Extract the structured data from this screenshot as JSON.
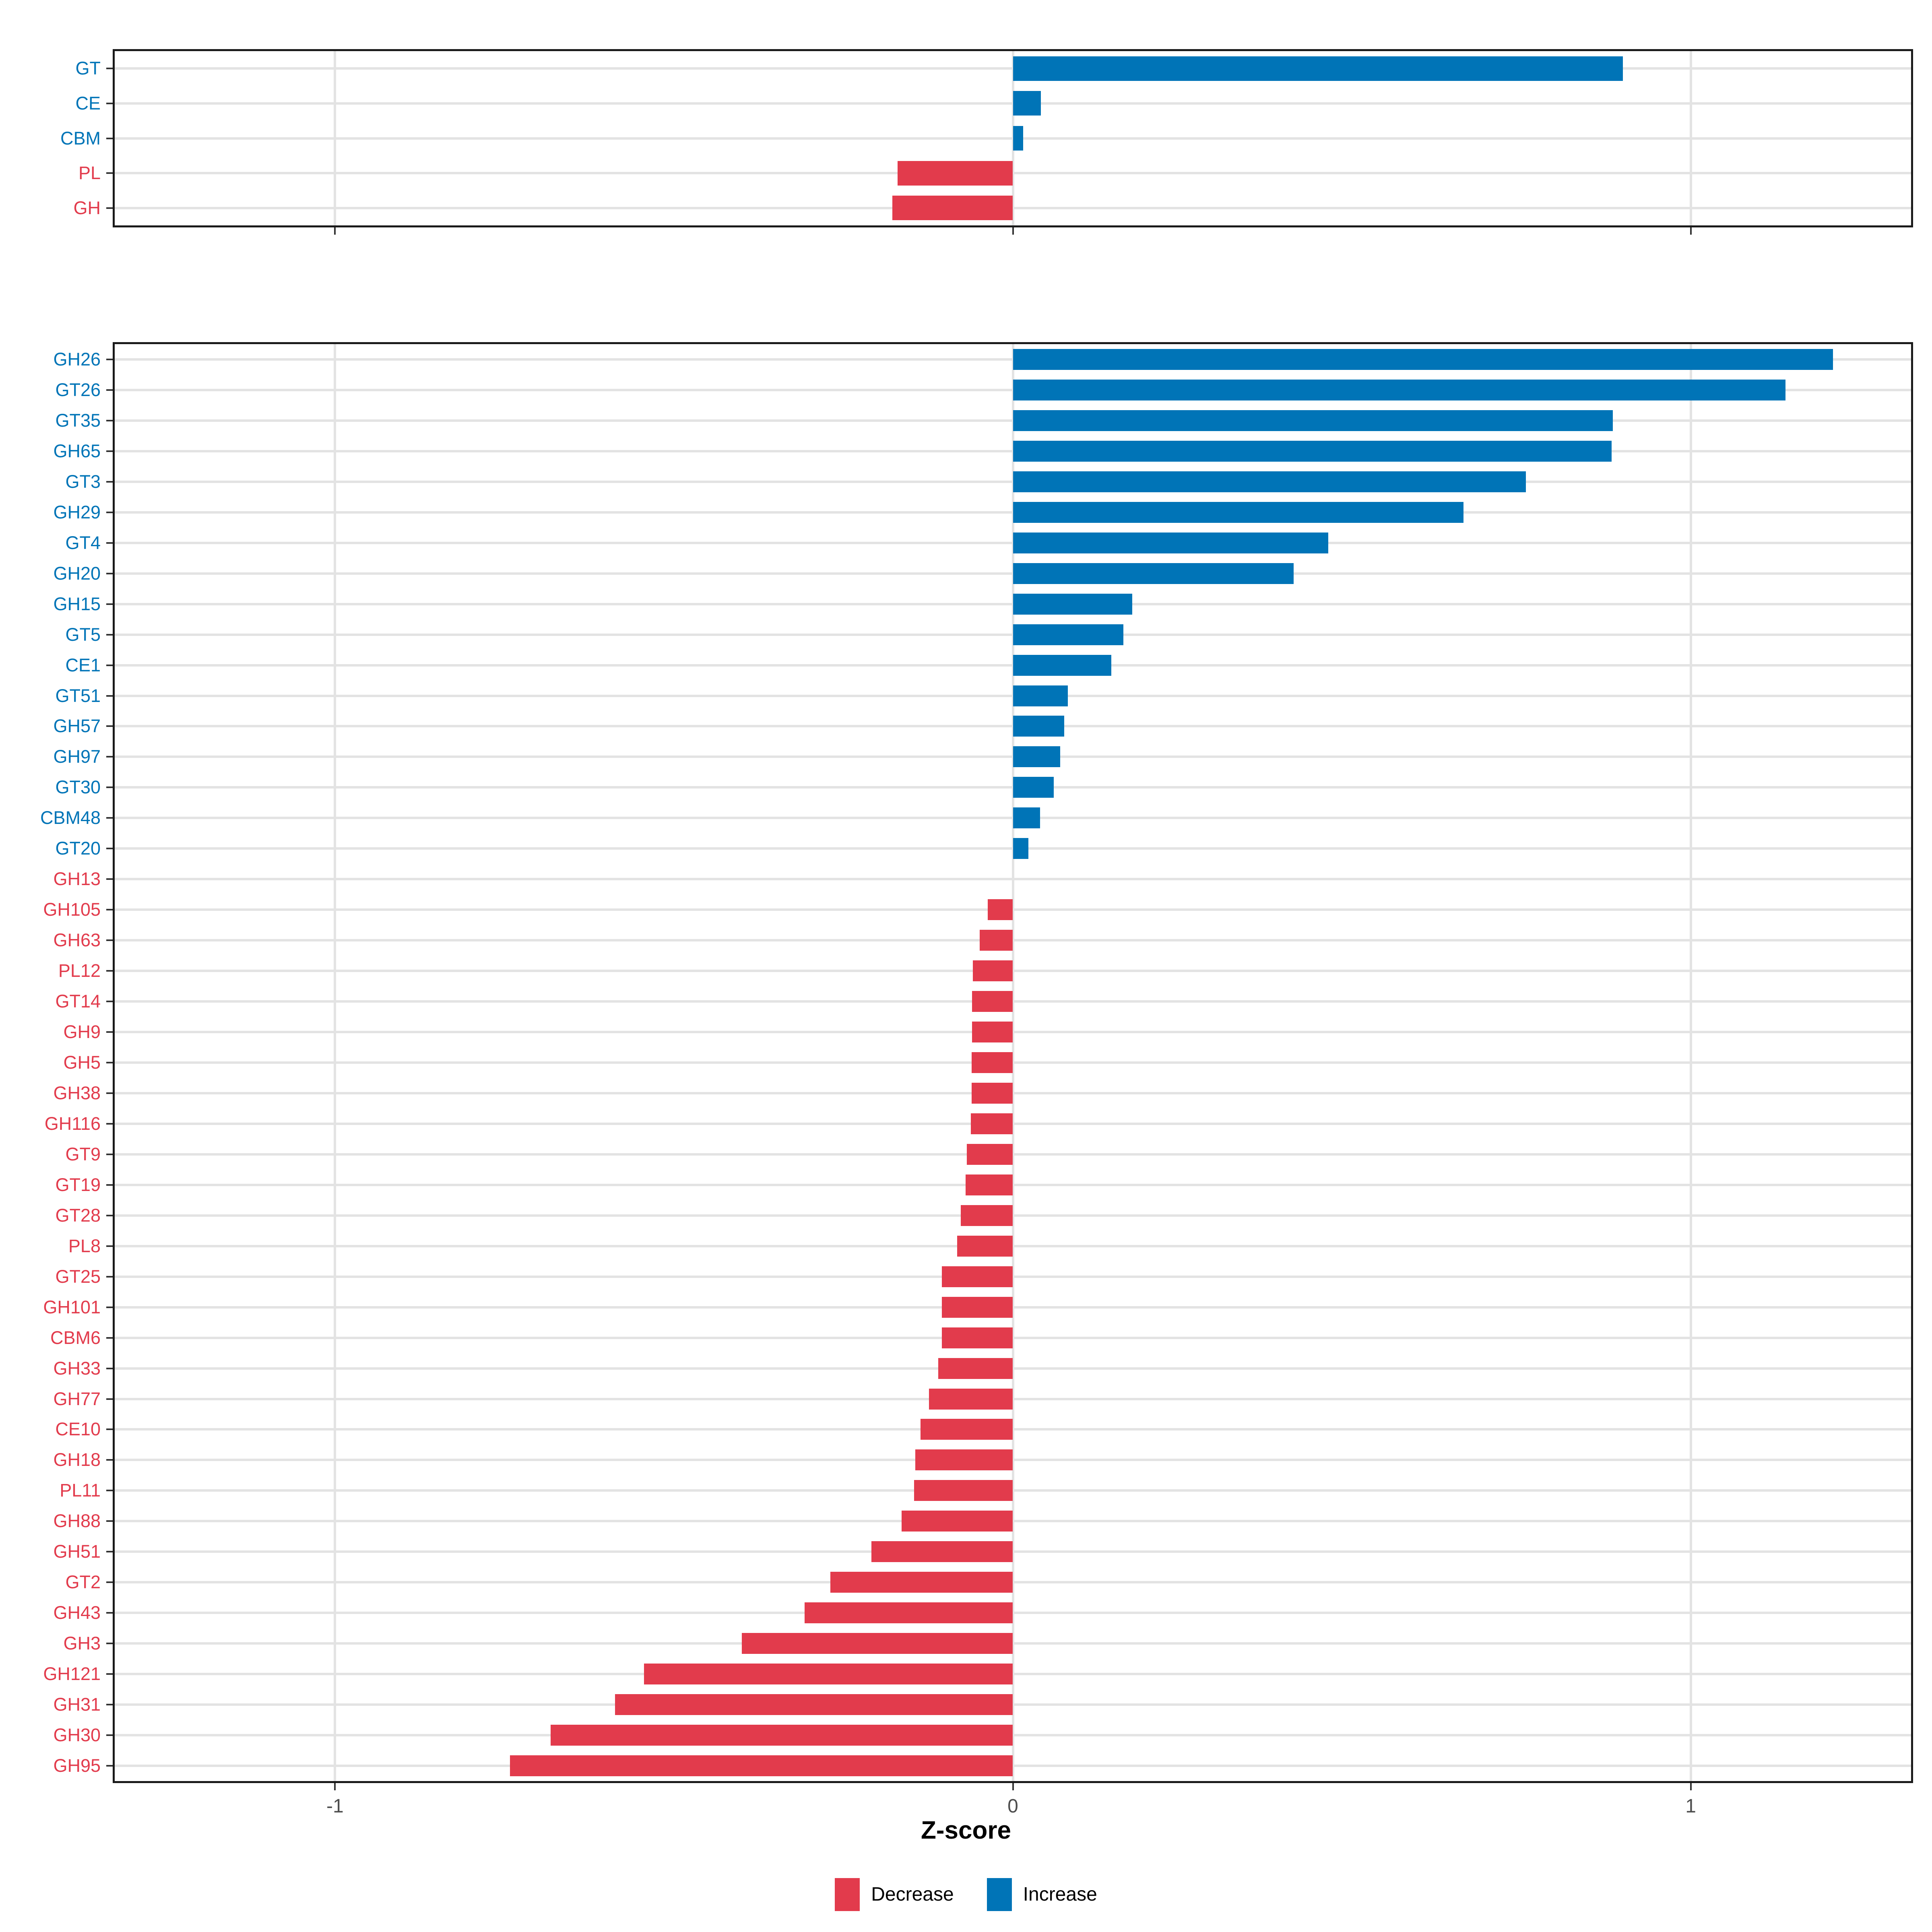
{
  "title": "",
  "axis": {
    "xlabel": "Z-score",
    "tick_labels": [
      "-1",
      "0",
      "1"
    ]
  },
  "legend": {
    "items": [
      {
        "label": "Decrease",
        "color": "#E23B4C"
      },
      {
        "label": "Increase",
        "color": "#0074B7"
      }
    ]
  },
  "colors": {
    "increase": "#0074B7",
    "decrease": "#E23B4C",
    "grid": "#E3E3E3",
    "panel_border": "#1A1A1A",
    "tick_mark": "#333333",
    "tick_label": "#4D4D4D",
    "background": "#FFFFFF"
  },
  "chart_data": [
    {
      "type": "bar",
      "orientation": "horizontal",
      "panel": "cazyme-classes",
      "categories": [
        "GT",
        "CE",
        "CBM",
        "PL",
        "GH"
      ],
      "values": [
        0.9,
        0.041,
        0.015,
        -0.17,
        -0.178
      ],
      "directions": [
        "increase",
        "increase",
        "increase",
        "decrease",
        "decrease"
      ],
      "xlim": [
        -1.325,
        1.325
      ],
      "x_ticks": [
        -1,
        0,
        1
      ],
      "xlabel": "",
      "grid": "on",
      "legend_position": "bottom"
    },
    {
      "type": "bar",
      "orientation": "horizontal",
      "panel": "cazyme-families",
      "categories": [
        "GH26",
        "GT26",
        "GT35",
        "GH65",
        "GT3",
        "GH29",
        "GT4",
        "GH20",
        "GH15",
        "GT5",
        "CE1",
        "GT51",
        "GH57",
        "GH97",
        "GT30",
        "CBM48",
        "GT20",
        "GH13",
        "GH105",
        "GH63",
        "PL12",
        "GT14",
        "GH9",
        "GH5",
        "GH38",
        "GH116",
        "GT9",
        "GT19",
        "GT28",
        "PL8",
        "GT25",
        "GH101",
        "CBM6",
        "GH33",
        "GH77",
        "CE10",
        "GH18",
        "PL11",
        "GH88",
        "GH51",
        "GT2",
        "GH43",
        "GH3",
        "GH121",
        "GH31",
        "GH30",
        "GH95"
      ],
      "values": [
        1.21,
        1.14,
        0.885,
        0.883,
        0.757,
        0.665,
        0.465,
        0.414,
        0.176,
        0.163,
        0.145,
        0.081,
        0.076,
        0.07,
        0.06,
        0.04,
        0.023,
        0.0,
        -0.037,
        -0.049,
        -0.059,
        -0.06,
        -0.06,
        -0.061,
        -0.061,
        -0.062,
        -0.068,
        -0.07,
        -0.077,
        -0.082,
        -0.105,
        -0.105,
        -0.105,
        -0.11,
        -0.124,
        -0.136,
        -0.144,
        -0.146,
        -0.164,
        -0.209,
        -0.269,
        -0.307,
        -0.4,
        -0.544,
        -0.587,
        -0.682,
        -0.742
      ],
      "directions": [
        "increase",
        "increase",
        "increase",
        "increase",
        "increase",
        "increase",
        "increase",
        "increase",
        "increase",
        "increase",
        "increase",
        "increase",
        "increase",
        "increase",
        "increase",
        "increase",
        "increase",
        "decrease",
        "decrease",
        "decrease",
        "decrease",
        "decrease",
        "decrease",
        "decrease",
        "decrease",
        "decrease",
        "decrease",
        "decrease",
        "decrease",
        "decrease",
        "decrease",
        "decrease",
        "decrease",
        "decrease",
        "decrease",
        "decrease",
        "decrease",
        "decrease",
        "decrease",
        "decrease",
        "decrease",
        "decrease",
        "decrease",
        "decrease",
        "decrease",
        "decrease",
        "decrease"
      ],
      "xlim": [
        -1.325,
        1.325
      ],
      "x_ticks": [
        -1,
        0,
        1
      ],
      "xlabel": "Z-score",
      "grid": "on",
      "legend_position": "bottom"
    }
  ]
}
